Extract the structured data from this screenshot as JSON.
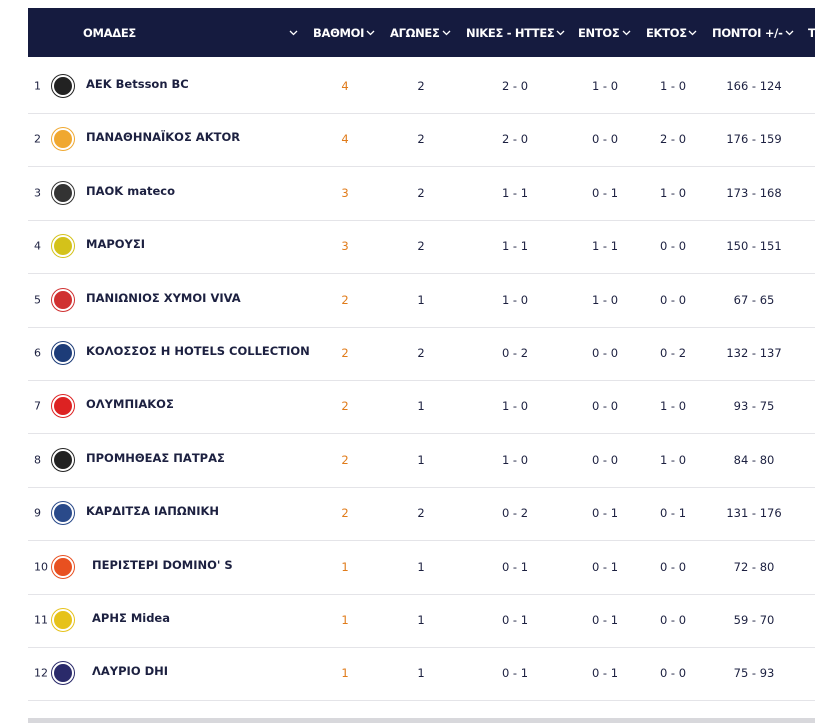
{
  "table": {
    "headers": [
      "ΟΜΑΔΕΣ",
      "ΒΑΘΜΟΙ",
      "ΑΓΩΝΕΣ",
      "ΝΙΚΕΣ - ΗΤΤΕΣ",
      "ΕΝΤΟΣ",
      "ΕΚΤΟΣ",
      "ΠΟΝΤΟΙ +/-",
      "Τ"
    ],
    "rows": [
      [
        1,
        "AEK Betsson BC",
        4,
        2,
        "2 - 0",
        "1 - 0",
        "1 - 0",
        "166 - 124"
      ],
      [
        2,
        "ΠΑΝΑΘΗΝΑΪΚΟΣ AKTOR",
        4,
        2,
        "2 - 0",
        "0 - 0",
        "2 - 0",
        "176 - 159"
      ],
      [
        3,
        "ΠΑΟΚ mateco",
        3,
        2,
        "1 - 1",
        "0 - 1",
        "1 - 0",
        "173 - 168"
      ],
      [
        4,
        "ΜΑΡΟΥΣΙ",
        3,
        2,
        "1 - 1",
        "1 - 1",
        "0 - 0",
        "150 - 151"
      ],
      [
        5,
        "ΠΑΝΙΩΝΙΟΣ ΧΥΜΟΙ VIVA",
        2,
        1,
        "1 - 0",
        "1 - 0",
        "0 - 0",
        "67 - 65"
      ],
      [
        6,
        "ΚΟΛΟΣΣΟΣ H HOTELS COLLECTION",
        2,
        2,
        "0 - 2",
        "0 - 0",
        "0 - 2",
        "132 - 137"
      ],
      [
        7,
        "ΟΛΥΜΠΙΑΚΟΣ",
        2,
        1,
        "1 - 0",
        "0 - 0",
        "1 - 0",
        "93 - 75"
      ],
      [
        8,
        "ΠΡΟΜΗΘΕΑΣ ΠΑΤΡΑΣ",
        2,
        1,
        "1 - 0",
        "0 - 0",
        "1 - 0",
        "84 - 80"
      ],
      [
        9,
        "ΚΑΡΔΙΤΣΑ ΙΑΠΩΝΙΚΗ",
        2,
        2,
        "0 - 2",
        "0 - 1",
        "0 - 1",
        "131 - 176"
      ],
      [
        10,
        "ΠΕΡΙΣΤΕΡΙ DOMINO' S",
        1,
        1,
        "0 - 1",
        "0 - 1",
        "0 - 0",
        "72 - 80"
      ],
      [
        11,
        "ΑΡΗΣ Midea",
        1,
        1,
        "0 - 1",
        "0 - 1",
        "0 - 0",
        "59 - 70"
      ],
      [
        12,
        "ΛΑΥΡΙΟ DHI",
        1,
        1,
        "0 - 1",
        "0 - 1",
        "0 - 0",
        "75 - 93"
      ]
    ]
  }
}
